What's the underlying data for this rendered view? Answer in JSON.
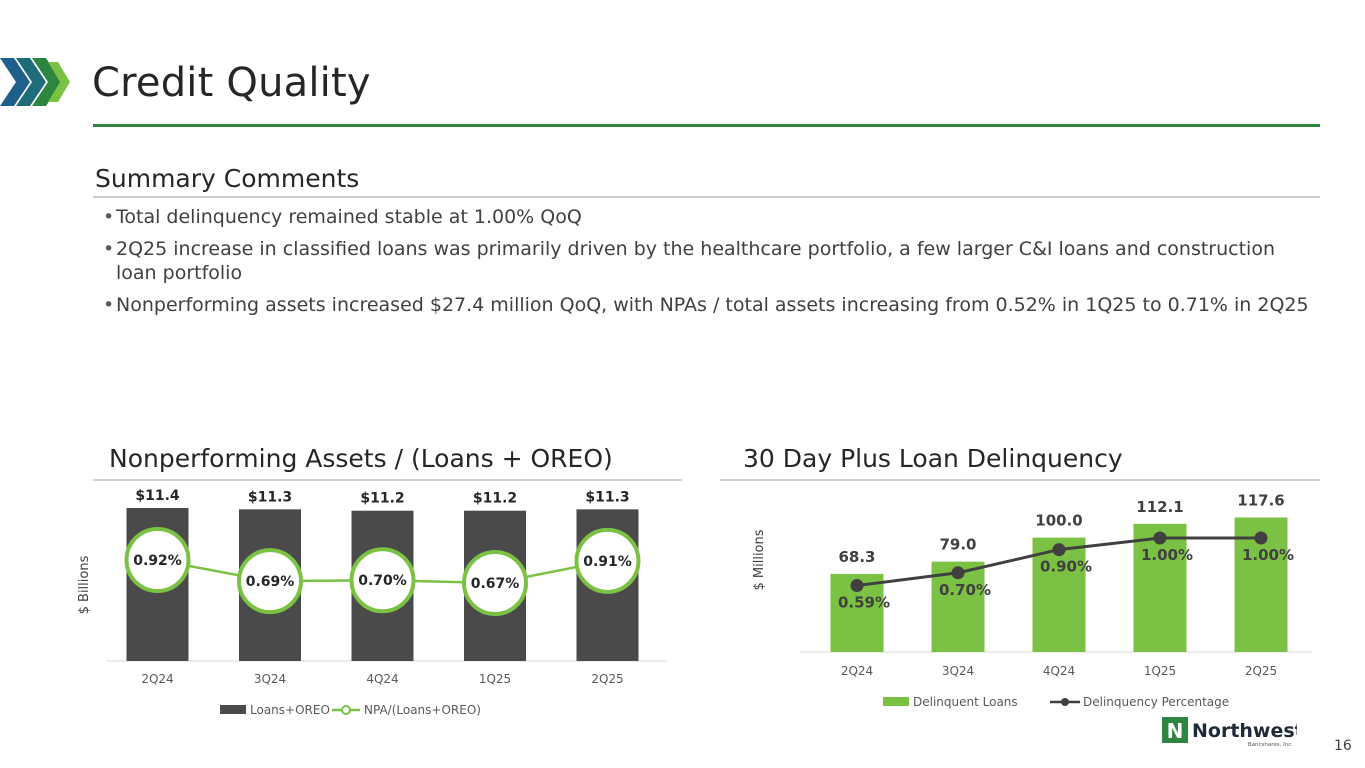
{
  "title": "Credit Quality",
  "summary": {
    "heading": "Summary Comments",
    "bullets": [
      "Total delinquency remained stable at 1.00% QoQ",
      "2Q25 increase in classified loans was primarily driven by the healthcare portfolio, a few larger C&I loans and construction loan portfolio",
      "Nonperforming assets increased $27.4 million QoQ, with NPAs / total assets increasing from 0.52% in 1Q25 to 0.71% in 2Q25"
    ]
  },
  "colors": {
    "accent_green": "#2e8540",
    "bar_gray": "#4a4a4a",
    "npa_line": "#7bc143",
    "delinquent_bar": "#7bc143",
    "delinquency_line": "#404040"
  },
  "chart_data": [
    {
      "type": "bar",
      "title": "Nonperforming Assets / (Loans + OREO)",
      "ylabel": "$ Billions",
      "categories": [
        "2Q24",
        "3Q24",
        "4Q24",
        "1Q25",
        "2Q25"
      ],
      "series": [
        {
          "name": "Loans+OREO",
          "type": "bar",
          "values": [
            11.4,
            11.3,
            11.2,
            11.2,
            11.3
          ],
          "labels": [
            "$11.4",
            "$11.3",
            "$11.2",
            "$11.2",
            "$11.3"
          ]
        },
        {
          "name": "NPA/(Loans+OREO)",
          "type": "line",
          "axis": "secondary",
          "values": [
            0.92,
            0.69,
            0.7,
            0.67,
            0.91
          ],
          "labels": [
            "0.92%",
            "0.69%",
            "0.70%",
            "0.67%",
            "0.91%"
          ]
        }
      ],
      "legend": "bottom"
    },
    {
      "type": "bar",
      "title": "30 Day Plus Loan Delinquency",
      "ylabel": "$ Millions",
      "categories": [
        "2Q24",
        "3Q24",
        "4Q24",
        "1Q25",
        "2Q25"
      ],
      "series": [
        {
          "name": "Delinquent Loans",
          "type": "bar",
          "values": [
            68.3,
            79.0,
            100.0,
            112.1,
            117.6
          ],
          "labels": [
            "68.3",
            "79.0",
            "100.0",
            "112.1",
            "117.6"
          ]
        },
        {
          "name": "Delinquency Percentage",
          "type": "line",
          "axis": "secondary",
          "values": [
            0.59,
            0.7,
            0.9,
            1.0,
            1.0
          ],
          "labels": [
            "0.59%",
            "0.70%",
            "0.90%",
            "1.00%",
            "1.00%"
          ]
        }
      ],
      "legend": "bottom"
    }
  ],
  "logo": {
    "name": "Northwest",
    "sub": "Bancshares, Inc.",
    "mark": "N"
  },
  "page_number": "16"
}
